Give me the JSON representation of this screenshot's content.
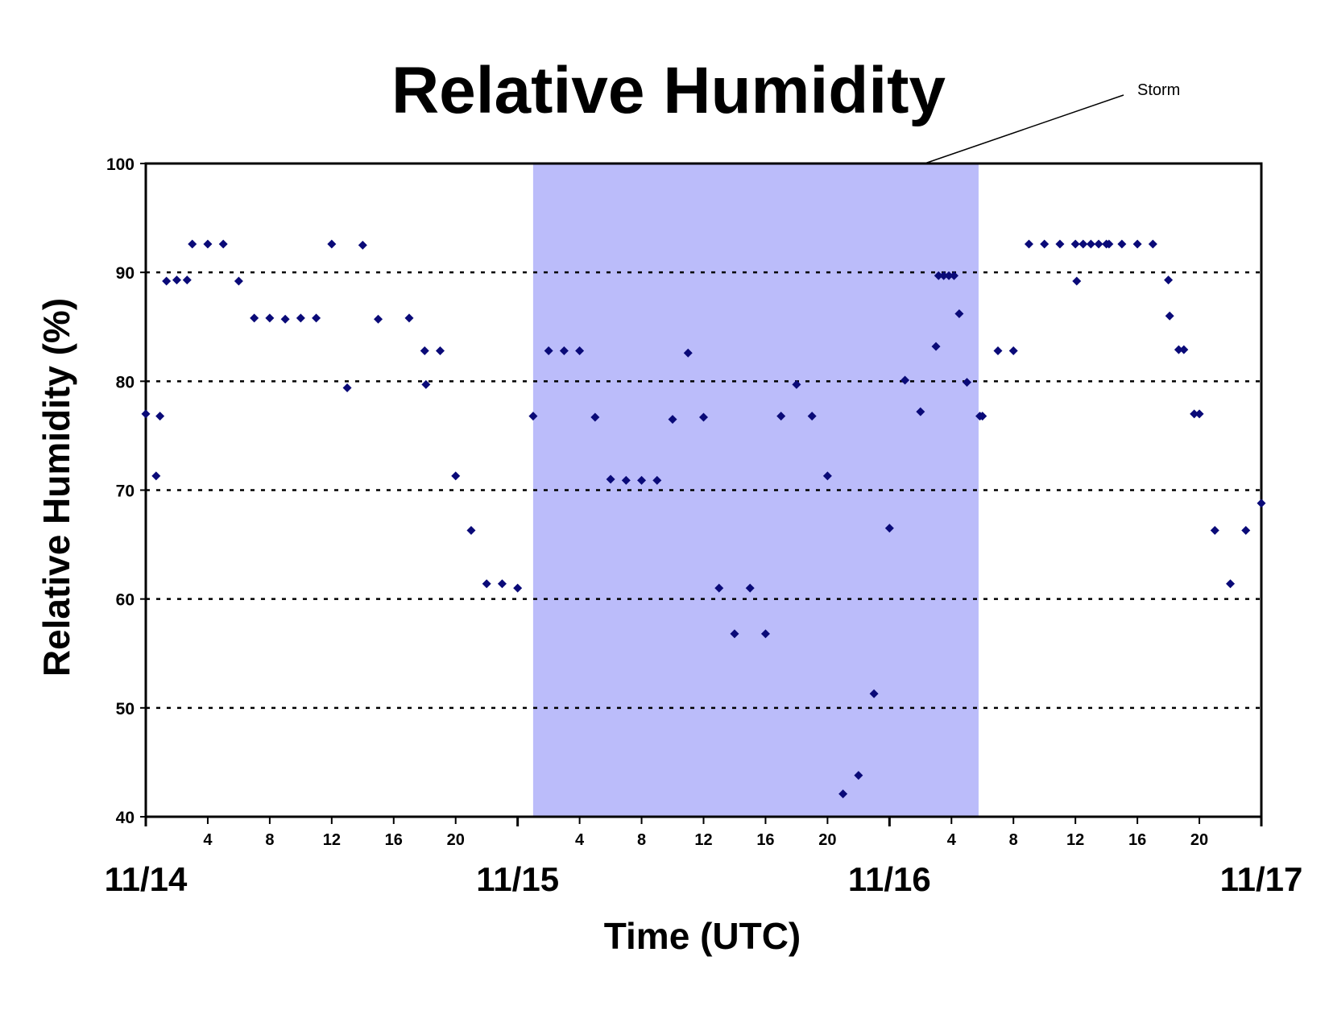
{
  "chart_data": {
    "type": "scatter",
    "title": "Relative Humidity",
    "xlabel": "Time (UTC)",
    "ylabel": "Relative Humidity (%)",
    "x_unit": "hours UTC",
    "ylim": [
      40,
      100
    ],
    "yticks": [
      "100",
      "90",
      "80",
      "70",
      "60",
      "50",
      "40"
    ],
    "grid": "horizontal dashed at 50, 60, 70, 80, 90",
    "point_color": "#0a0a78",
    "storm_color": "#bbbcfa",
    "hour_ticks": [
      "4",
      "8",
      "12",
      "16",
      "20",
      "4",
      "8",
      "12",
      "16",
      "20",
      "4",
      "8",
      "12",
      "16",
      "20"
    ],
    "date_labels": [
      "11/14",
      "11/15",
      "11/16",
      "11/17"
    ],
    "annotation": {
      "text": "Storm",
      "start": "11/15 01:00",
      "end": "11/16 05:45"
    },
    "points": [
      [
        "11/14 00:00",
        77.0
      ],
      [
        "11/14 00:40",
        71.3
      ],
      [
        "11/14 00:55",
        76.8
      ],
      [
        "11/14 01:20",
        89.2
      ],
      [
        "11/14 02:00",
        89.3
      ],
      [
        "11/14 02:40",
        89.3
      ],
      [
        "11/14 03:00",
        92.6
      ],
      [
        "11/14 04:00",
        92.6
      ],
      [
        "11/14 05:00",
        92.6
      ],
      [
        "11/14 06:00",
        89.2
      ],
      [
        "11/14 07:00",
        85.8
      ],
      [
        "11/14 08:00",
        85.8
      ],
      [
        "11/14 09:00",
        85.7
      ],
      [
        "11/14 10:00",
        85.8
      ],
      [
        "11/14 11:00",
        85.8
      ],
      [
        "11/14 12:00",
        92.6
      ],
      [
        "11/14 13:00",
        79.4
      ],
      [
        "11/14 14:00",
        92.5
      ],
      [
        "11/14 15:00",
        85.7
      ],
      [
        "11/14 17:00",
        85.8
      ],
      [
        "11/14 18:00",
        82.8
      ],
      [
        "11/14 18:05",
        79.7
      ],
      [
        "11/14 19:00",
        82.8
      ],
      [
        "11/14 20:00",
        71.3
      ],
      [
        "11/14 21:00",
        66.3
      ],
      [
        "11/14 22:00",
        61.4
      ],
      [
        "11/14 23:00",
        61.4
      ],
      [
        "11/15 00:00",
        61.0
      ],
      [
        "11/15 01:00",
        76.8
      ],
      [
        "11/15 02:00",
        82.8
      ],
      [
        "11/15 03:00",
        82.8
      ],
      [
        "11/15 04:00",
        82.8
      ],
      [
        "11/15 05:00",
        76.7
      ],
      [
        "11/15 06:00",
        71.0
      ],
      [
        "11/15 07:00",
        70.9
      ],
      [
        "11/15 08:00",
        70.9
      ],
      [
        "11/15 09:00",
        70.9
      ],
      [
        "11/15 10:00",
        76.5
      ],
      [
        "11/15 11:00",
        82.6
      ],
      [
        "11/15 12:00",
        76.7
      ],
      [
        "11/15 13:00",
        61.0
      ],
      [
        "11/15 14:00",
        56.8
      ],
      [
        "11/15 15:00",
        61.0
      ],
      [
        "11/15 16:00",
        56.8
      ],
      [
        "11/15 17:00",
        76.8
      ],
      [
        "11/15 18:00",
        79.7
      ],
      [
        "11/15 19:00",
        76.8
      ],
      [
        "11/15 20:00",
        71.3
      ],
      [
        "11/15 21:00",
        42.1
      ],
      [
        "11/15 22:00",
        43.8
      ],
      [
        "11/15 23:00",
        51.3
      ],
      [
        "11/16 00:00",
        66.5
      ],
      [
        "11/16 01:00",
        80.1
      ],
      [
        "11/16 02:00",
        77.2
      ],
      [
        "11/16 03:00",
        83.2
      ],
      [
        "11/16 03:10",
        89.7
      ],
      [
        "11/16 03:30",
        89.7
      ],
      [
        "11/16 03:50",
        89.7
      ],
      [
        "11/16 04:10",
        89.7
      ],
      [
        "11/16 04:30",
        86.2
      ],
      [
        "11/16 05:00",
        79.9
      ],
      [
        "11/16 05:50",
        76.8
      ],
      [
        "11/16 06:00",
        76.8
      ],
      [
        "11/16 07:00",
        82.8
      ],
      [
        "11/16 08:00",
        82.8
      ],
      [
        "11/16 09:00",
        92.6
      ],
      [
        "11/16 10:00",
        92.6
      ],
      [
        "11/16 11:00",
        92.6
      ],
      [
        "11/16 12:00",
        92.6
      ],
      [
        "11/16 12:05",
        89.2
      ],
      [
        "11/16 12:30",
        92.6
      ],
      [
        "11/16 13:00",
        92.6
      ],
      [
        "11/16 13:30",
        92.6
      ],
      [
        "11/16 14:00",
        92.6
      ],
      [
        "11/16 14:10",
        92.6
      ],
      [
        "11/16 15:00",
        92.6
      ],
      [
        "11/16 16:00",
        92.6
      ],
      [
        "11/16 17:00",
        92.6
      ],
      [
        "11/16 18:00",
        89.3
      ],
      [
        "11/16 18:05",
        86.0
      ],
      [
        "11/16 18:40",
        82.9
      ],
      [
        "11/16 19:00",
        82.9
      ],
      [
        "11/16 19:40",
        77.0
      ],
      [
        "11/16 20:00",
        77.0
      ],
      [
        "11/16 21:00",
        66.3
      ],
      [
        "11/16 22:00",
        61.4
      ],
      [
        "11/16 23:00",
        66.3
      ],
      [
        "11/17 00:00",
        68.8
      ]
    ]
  }
}
